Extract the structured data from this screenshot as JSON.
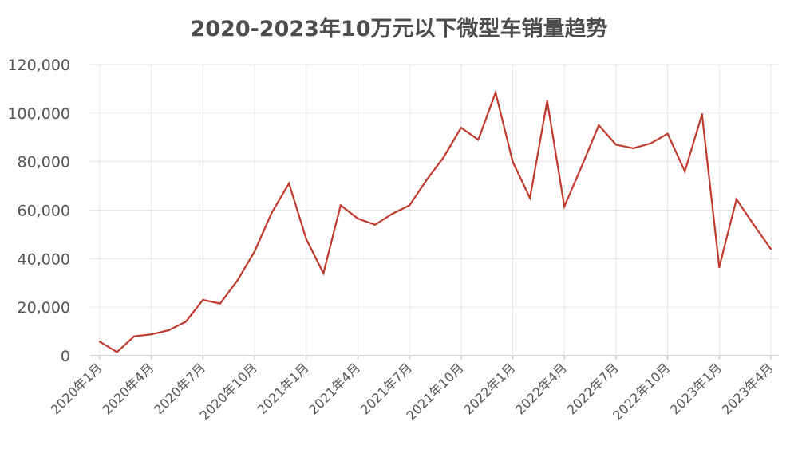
{
  "chart_data": {
    "type": "line",
    "title": "2020-2023年10万元以下微型车销量趋势",
    "xlabel": "",
    "ylabel": "",
    "ylim": [
      0,
      120000
    ],
    "grid": true,
    "line_color": "#c0392b",
    "y_ticks": [
      "0",
      "20,000",
      "40,000",
      "60,000",
      "80,000",
      "100,000",
      "120,000"
    ],
    "x_tick_labels": [
      {
        "index": 0,
        "label": "2020年1月"
      },
      {
        "index": 3,
        "label": "2020年4月"
      },
      {
        "index": 6,
        "label": "2020年7月"
      },
      {
        "index": 9,
        "label": "2020年10月"
      },
      {
        "index": 12,
        "label": "2021年1月"
      },
      {
        "index": 15,
        "label": "2021年4月"
      },
      {
        "index": 18,
        "label": "2021年7月"
      },
      {
        "index": 21,
        "label": "2021年10月"
      },
      {
        "index": 24,
        "label": "2022年1月"
      },
      {
        "index": 27,
        "label": "2022年4月"
      },
      {
        "index": 30,
        "label": "2022年7月"
      },
      {
        "index": 33,
        "label": "2022年10月"
      },
      {
        "index": 36,
        "label": "2023年1月"
      },
      {
        "index": 39,
        "label": "2023年4月"
      }
    ],
    "categories": [
      "2020年1月",
      "2020年2月",
      "2020年3月",
      "2020年4月",
      "2020年5月",
      "2020年6月",
      "2020年7月",
      "2020年8月",
      "2020年9月",
      "2020年10月",
      "2020年11月",
      "2020年12月",
      "2021年1月",
      "2021年2月",
      "2021年3月",
      "2021年4月",
      "2021年5月",
      "2021年6月",
      "2021年7月",
      "2021年8月",
      "2021年9月",
      "2021年10月",
      "2021年11月",
      "2021年12月",
      "2022年1月",
      "2022年2月",
      "2022年3月",
      "2022年4月",
      "2022年5月",
      "2022年6月",
      "2022年7月",
      "2022年8月",
      "2022年9月",
      "2022年10月",
      "2022年11月",
      "2022年12月",
      "2023年1月",
      "2023年2月",
      "2023年3月",
      "2023年4月"
    ],
    "values": [
      5800,
      1500,
      8000,
      8800,
      10500,
      14000,
      23000,
      21500,
      31000,
      43000,
      59000,
      71000,
      48000,
      34000,
      62000,
      56500,
      54000,
      58500,
      62000,
      72500,
      82000,
      94000,
      89000,
      108500,
      80000,
      65000,
      105000,
      61500,
      78000,
      95000,
      87000,
      85500,
      87500,
      91500,
      76000,
      99500,
      36500,
      64500,
      54000,
      44000
    ]
  }
}
